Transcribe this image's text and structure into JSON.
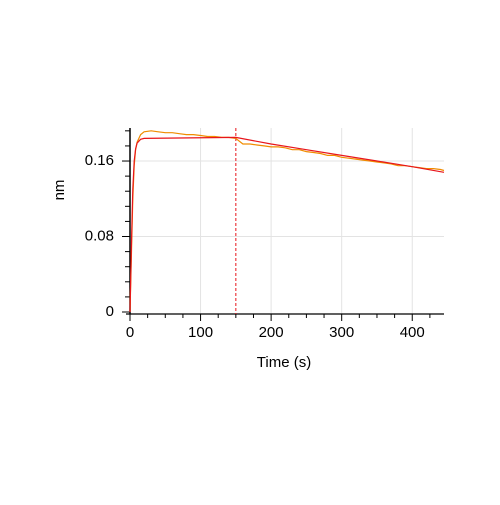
{
  "chart_data": {
    "type": "line",
    "x_label": "Time (s)",
    "y_label": "nm",
    "xlim": [
      0,
      445
    ],
    "ylim": [
      0,
      0.195
    ],
    "xticks": [
      0,
      100,
      200,
      300,
      400
    ],
    "yticks": [
      0,
      0.08,
      0.16
    ],
    "xminorticks": [
      25,
      50,
      75,
      125,
      150,
      175,
      225,
      250,
      275,
      325,
      350,
      375,
      425
    ],
    "yminorticks": [
      0.016,
      0.032,
      0.048,
      0.064,
      0.096,
      0.112,
      0.128,
      0.144,
      0.176,
      0.192
    ],
    "grid": true,
    "grid_color": "#e3e3e3",
    "vline": 150,
    "vline_color": "#e8151b",
    "series": [
      {
        "color": "#f08c00",
        "x": [
          0,
          2,
          4,
          6,
          8,
          10,
          15,
          20,
          30,
          40,
          50,
          60,
          70,
          80,
          90,
          100,
          110,
          120,
          130,
          140,
          150,
          160,
          170,
          180,
          190,
          200,
          210,
          220,
          230,
          240,
          250,
          260,
          270,
          280,
          290,
          300,
          310,
          320,
          330,
          340,
          350,
          360,
          370,
          380,
          390,
          400,
          410,
          420,
          430,
          440,
          445
        ],
        "values": [
          0,
          0.06,
          0.12,
          0.155,
          0.172,
          0.18,
          0.188,
          0.191,
          0.192,
          0.191,
          0.19,
          0.19,
          0.189,
          0.188,
          0.188,
          0.187,
          0.186,
          0.186,
          0.185,
          0.185,
          0.184,
          0.178,
          0.178,
          0.177,
          0.176,
          0.175,
          0.175,
          0.174,
          0.172,
          0.172,
          0.17,
          0.169,
          0.168,
          0.166,
          0.166,
          0.164,
          0.163,
          0.162,
          0.161,
          0.16,
          0.159,
          0.158,
          0.157,
          0.155,
          0.155,
          0.154,
          0.153,
          0.152,
          0.152,
          0.151,
          0.15
        ]
      },
      {
        "color": "#e8151b",
        "x": [
          0,
          2,
          4,
          6,
          8,
          10,
          15,
          20,
          150,
          200,
          250,
          300,
          350,
          400,
          445
        ],
        "values": [
          0,
          0.07,
          0.13,
          0.16,
          0.173,
          0.179,
          0.183,
          0.184,
          0.185,
          0.178,
          0.172,
          0.166,
          0.16,
          0.154,
          0.148
        ]
      }
    ]
  }
}
